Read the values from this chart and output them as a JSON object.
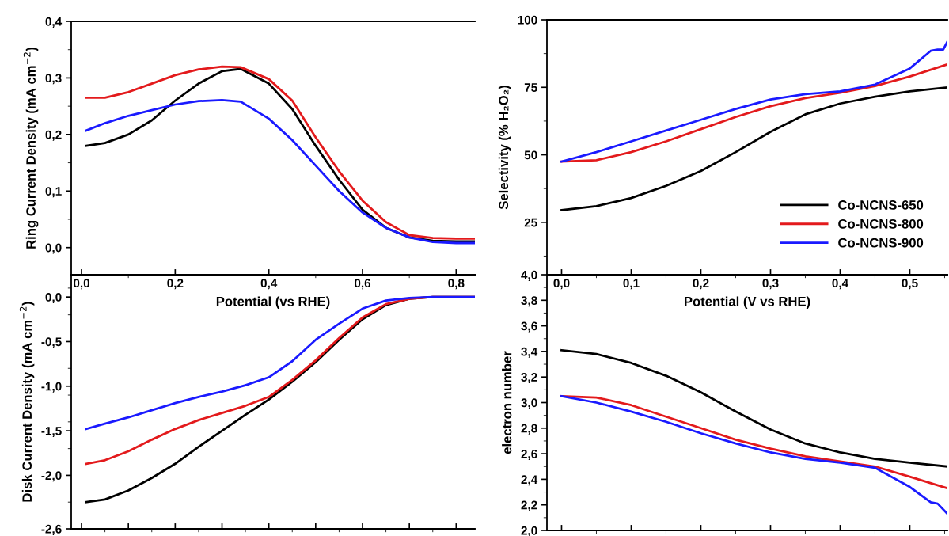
{
  "chart_data": [
    {
      "type": "line",
      "ylabel": "Ring Current Density (mA cm$^{−2}$)",
      "xlabel": "Potential (vs RHE)",
      "tick_labels": true,
      "grid": false,
      "legend": false,
      "x": [
        0.01,
        0.05,
        0.1,
        0.15,
        0.2,
        0.25,
        0.3,
        0.34,
        0.4,
        0.45,
        0.5,
        0.55,
        0.6,
        0.65,
        0.7,
        0.75,
        0.8,
        0.84
      ],
      "xlim": [
        -0.022,
        0.84
      ],
      "xticks": [
        {
          "value": 0,
          "label": "0,0"
        },
        {
          "value": 0.2,
          "label": "0,2"
        },
        {
          "value": 0.4,
          "label": "0,4"
        },
        {
          "value": 0.6,
          "label": "0,6"
        },
        {
          "value": 0.8,
          "label": "0,8"
        }
      ],
      "ylim": [
        -0.048,
        0.4
      ],
      "yticks": [
        {
          "value": 0,
          "label": "0,0"
        },
        {
          "value": 0.1,
          "label": "0,1"
        },
        {
          "value": 0.2,
          "label": "0,2"
        },
        {
          "value": 0.3,
          "label": "0,3"
        },
        {
          "value": 0.4,
          "label": "0,4"
        }
      ],
      "series": [
        {
          "color": "#000000",
          "values": [
            0.18,
            0.185,
            0.2,
            0.225,
            0.26,
            0.29,
            0.312,
            0.316,
            0.29,
            0.245,
            0.18,
            0.12,
            0.067,
            0.035,
            0.018,
            0.012,
            0.011,
            0.011
          ]
        },
        {
          "color": "#e31a1c",
          "values": [
            0.265,
            0.265,
            0.275,
            0.29,
            0.305,
            0.315,
            0.32,
            0.319,
            0.298,
            0.26,
            0.195,
            0.135,
            0.083,
            0.045,
            0.022,
            0.017,
            0.016,
            0.016
          ]
        },
        {
          "color": "#1a1aff",
          "values": [
            0.207,
            0.22,
            0.233,
            0.243,
            0.253,
            0.259,
            0.261,
            0.258,
            0.228,
            0.19,
            0.145,
            0.1,
            0.062,
            0.035,
            0.018,
            0.01,
            0.008,
            0.008
          ]
        }
      ]
    },
    {
      "type": "line",
      "ylabel": "Selectivity (% H₂O₂)",
      "xlabel": "Potential (V vs RHE)",
      "tick_labels": true,
      "grid": false,
      "legend": "lower right",
      "xlim": [
        -0.021,
        0.554
      ],
      "xticks": [
        {
          "value": 0,
          "label": "0,0"
        },
        {
          "value": 0.1,
          "label": "0,1"
        },
        {
          "value": 0.2,
          "label": "0,2"
        },
        {
          "value": 0.3,
          "label": "0,3"
        },
        {
          "value": 0.4,
          "label": "0,4"
        },
        {
          "value": 0.5,
          "label": "0,5"
        }
      ],
      "ylim": [
        5.6,
        100
      ],
      "yticks": [
        25,
        50,
        75,
        100
      ],
      "series": [
        {
          "name": "Co-NCNS-650",
          "color": "#000000",
          "x": [
            0,
            0.05,
            0.1,
            0.15,
            0.2,
            0.25,
            0.3,
            0.35,
            0.4,
            0.45,
            0.5,
            0.554
          ],
          "values": [
            29.5,
            31,
            34,
            38.5,
            44,
            51,
            58.5,
            65,
            69,
            71.5,
            73.5,
            75
          ]
        },
        {
          "name": "Co-NCNS-800",
          "color": "#e31a1c",
          "x": [
            0,
            0.05,
            0.1,
            0.15,
            0.2,
            0.25,
            0.3,
            0.35,
            0.4,
            0.45,
            0.5,
            0.554
          ],
          "values": [
            47.5,
            48,
            51,
            55,
            59.5,
            64,
            68,
            71,
            73,
            75.5,
            79,
            83.5
          ]
        },
        {
          "name": "Co-NCNS-900",
          "color": "#1a1aff",
          "x": [
            0,
            0.05,
            0.1,
            0.15,
            0.2,
            0.25,
            0.3,
            0.35,
            0.4,
            0.45,
            0.5,
            0.53,
            0.54,
            0.548,
            0.554
          ],
          "values": [
            47.5,
            51,
            55,
            59,
            63,
            67,
            70.5,
            72.5,
            73.5,
            76,
            82,
            88.5,
            89,
            89,
            92
          ]
        }
      ]
    },
    {
      "type": "line",
      "ylabel": "Disk Current Density (mA cm$^{−2}$)",
      "tick_labels": "y",
      "grid": false,
      "legend": false,
      "x": [
        0.01,
        0.05,
        0.1,
        0.15,
        0.2,
        0.25,
        0.3,
        0.35,
        0.4,
        0.45,
        0.5,
        0.55,
        0.6,
        0.65,
        0.7,
        0.75,
        0.84
      ],
      "xlim": [
        -0.022,
        0.84
      ],
      "ylim": [
        -2.6,
        0.25
      ],
      "yticks": [
        {
          "value": -2.6,
          "label": "-2,6"
        },
        {
          "value": -2,
          "label": "-2,0"
        },
        {
          "value": -1.5,
          "label": "-1,5"
        },
        {
          "value": -1,
          "label": "-1,0"
        },
        {
          "value": -0.5,
          "label": "-0,5"
        },
        {
          "value": 0,
          "label": "0,0"
        }
      ],
      "series": [
        {
          "color": "#000000",
          "values": [
            -2.3,
            -2.27,
            -2.17,
            -2.03,
            -1.87,
            -1.68,
            -1.5,
            -1.32,
            -1.15,
            -0.95,
            -0.73,
            -0.48,
            -0.25,
            -0.09,
            -0.02,
            0,
            0
          ]
        },
        {
          "color": "#e31a1c",
          "values": [
            -1.87,
            -1.83,
            -1.73,
            -1.6,
            -1.48,
            -1.38,
            -1.3,
            -1.22,
            -1.12,
            -0.93,
            -0.71,
            -0.46,
            -0.23,
            -0.08,
            -0.02,
            0,
            0
          ]
        },
        {
          "color": "#1a1aff",
          "values": [
            -1.48,
            -1.42,
            -1.35,
            -1.27,
            -1.19,
            -1.12,
            -1.06,
            -0.99,
            -0.9,
            -0.72,
            -0.48,
            -0.3,
            -0.13,
            -0.04,
            -0.01,
            0,
            0
          ]
        }
      ]
    },
    {
      "type": "line",
      "ylabel": "electron number",
      "tick_labels": "y",
      "grid": false,
      "legend": false,
      "xlim": [
        -0.021,
        0.554
      ],
      "ylim": [
        2.0,
        4.0
      ],
      "yticks": [
        {
          "value": 2.0,
          "label": "2,0"
        },
        {
          "value": 2.2,
          "label": "2,2"
        },
        {
          "value": 2.4,
          "label": "2,4"
        },
        {
          "value": 2.6,
          "label": "2,6"
        },
        {
          "value": 2.8,
          "label": "2,8"
        },
        {
          "value": 3.0,
          "label": "3,0"
        },
        {
          "value": 3.2,
          "label": "3,2"
        },
        {
          "value": 3.4,
          "label": "3,4"
        },
        {
          "value": 3.6,
          "label": "3,6"
        },
        {
          "value": 3.8,
          "label": "3,8"
        },
        {
          "value": 4.0,
          "label": "4,0"
        }
      ],
      "series": [
        {
          "color": "#000000",
          "x": [
            0,
            0.05,
            0.1,
            0.15,
            0.2,
            0.25,
            0.3,
            0.35,
            0.4,
            0.45,
            0.5,
            0.554
          ],
          "values": [
            3.41,
            3.38,
            3.31,
            3.21,
            3.08,
            2.93,
            2.79,
            2.68,
            2.61,
            2.56,
            2.53,
            2.5
          ]
        },
        {
          "color": "#e31a1c",
          "x": [
            0,
            0.05,
            0.1,
            0.15,
            0.2,
            0.25,
            0.3,
            0.35,
            0.4,
            0.45,
            0.5,
            0.554
          ],
          "values": [
            3.05,
            3.04,
            2.98,
            2.89,
            2.8,
            2.71,
            2.64,
            2.58,
            2.54,
            2.5,
            2.42,
            2.33
          ]
        },
        {
          "color": "#1a1aff",
          "x": [
            0,
            0.05,
            0.1,
            0.15,
            0.2,
            0.25,
            0.3,
            0.35,
            0.4,
            0.45,
            0.5,
            0.53,
            0.54,
            0.554
          ],
          "values": [
            3.05,
            3.0,
            2.93,
            2.85,
            2.76,
            2.68,
            2.61,
            2.56,
            2.53,
            2.49,
            2.34,
            2.22,
            2.21,
            2.13
          ]
        }
      ]
    }
  ]
}
